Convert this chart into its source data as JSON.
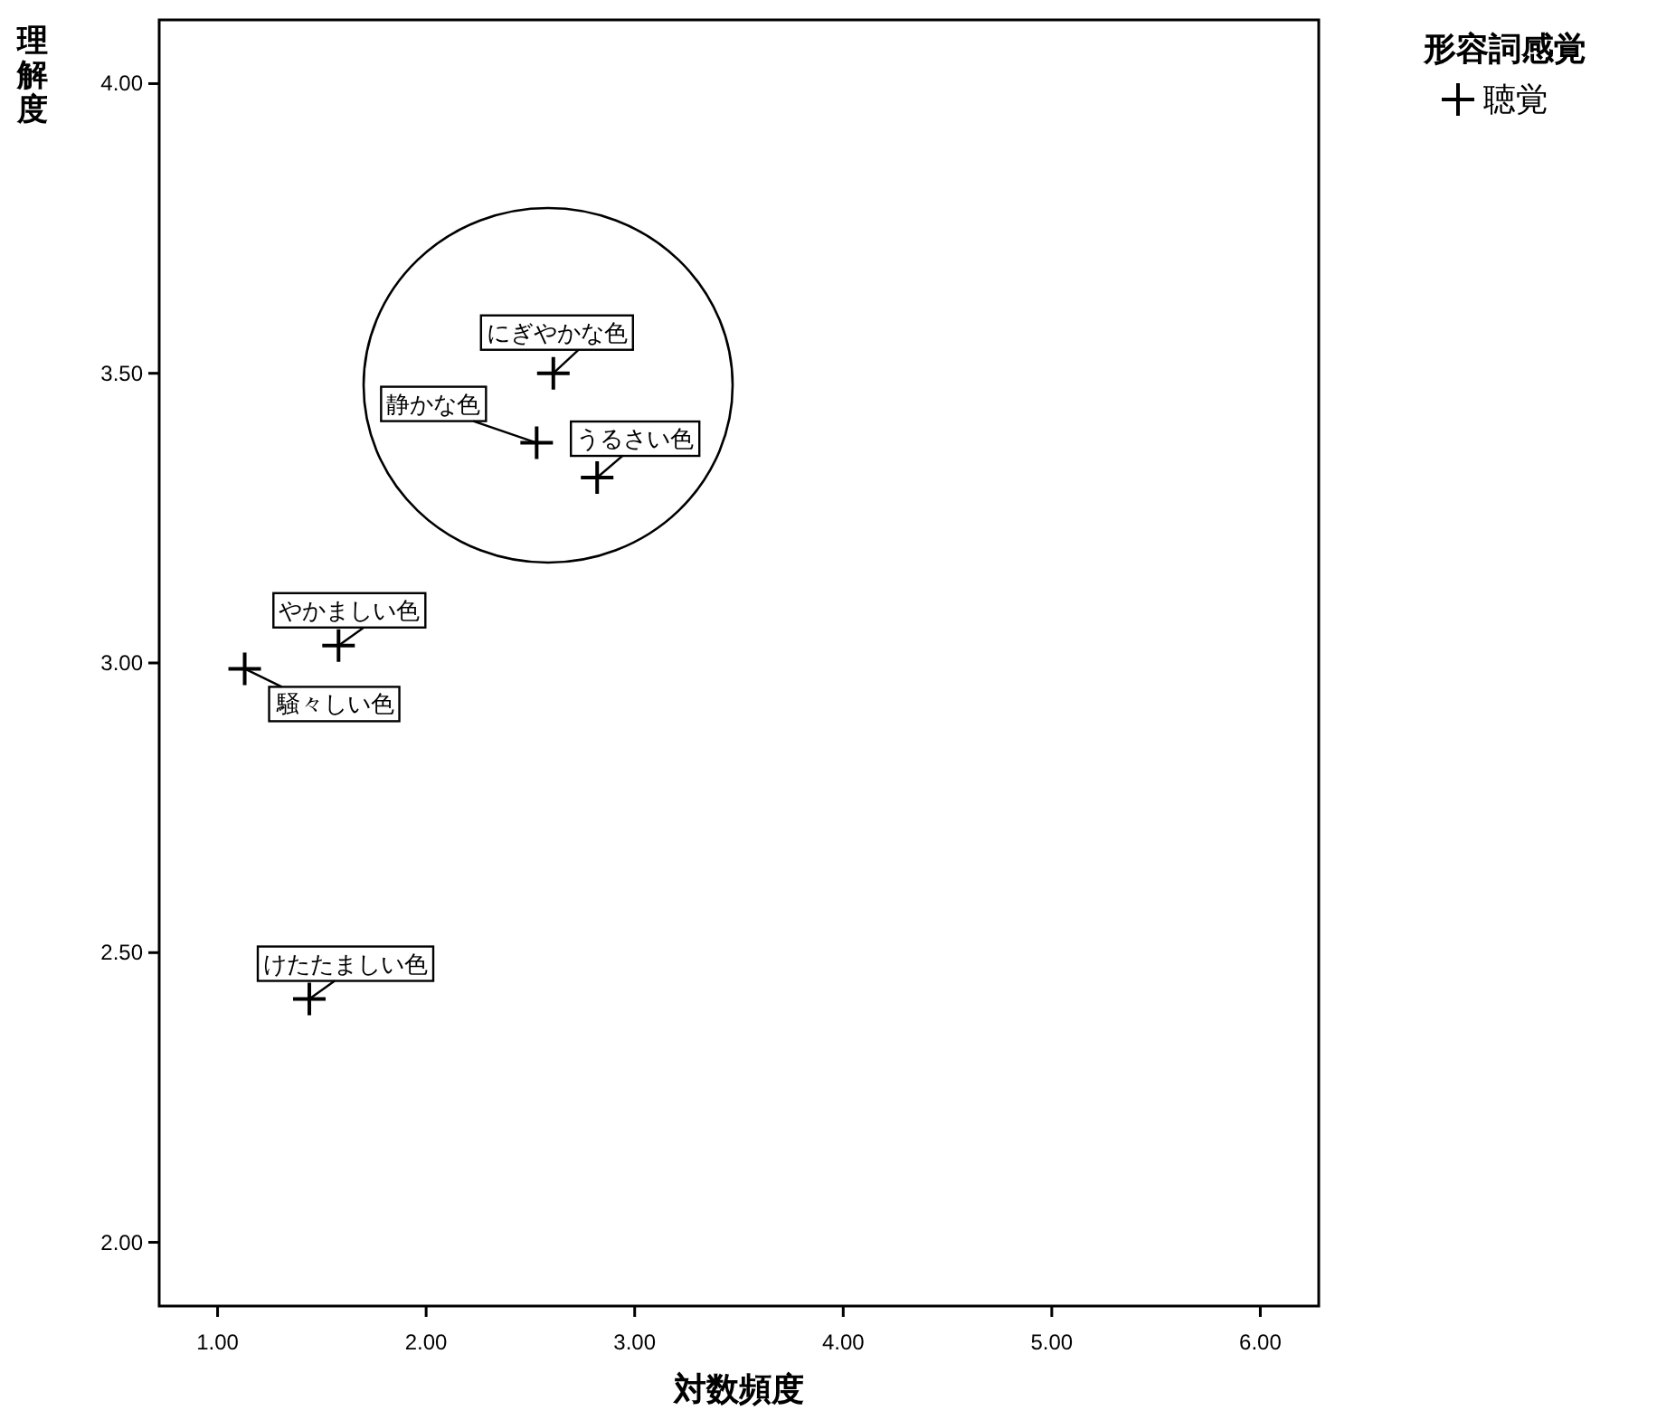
{
  "chart_data": {
    "type": "scatter",
    "xlabel": "対数頻度",
    "ylabel": "理解度",
    "legend_title": "形容詞感覚",
    "legend": "top right",
    "marker": "cross",
    "xlim": [
      0.72,
      6.28
    ],
    "xticks": [
      {
        "value": 1,
        "label": "1.00"
      },
      {
        "value": 2,
        "label": "2.00"
      },
      {
        "value": 3,
        "label": "3.00"
      },
      {
        "value": 4,
        "label": "4.00"
      },
      {
        "value": 5,
        "label": "5.00"
      },
      {
        "value": 6,
        "label": "6.00"
      }
    ],
    "ylim": [
      1.89,
      4.11
    ],
    "yticks": [
      {
        "value": 2,
        "label": "2.00"
      },
      {
        "value": 2.5,
        "label": "2.50"
      },
      {
        "value": 3,
        "label": "3.00"
      },
      {
        "value": 3.5,
        "label": "3.50"
      },
      {
        "value": 4,
        "label": "4.00"
      }
    ],
    "series": [
      {
        "name": "聴覚",
        "color": "#000000",
        "x": [
          2.61,
          2.53,
          2.82,
          1.58,
          1.13,
          1.44
        ],
        "values": [
          3.5,
          3.38,
          3.32,
          3.03,
          2.99,
          2.42
        ]
      }
    ],
    "annotations": [
      {
        "text": "にぎやかな色",
        "x": 2.61,
        "y": 3.5
      },
      {
        "text": "静かな色",
        "x": 2.53,
        "y": 3.38
      },
      {
        "text": "うるさい色",
        "x": 2.82,
        "y": 3.32
      },
      {
        "text": "やかましい色",
        "x": 1.58,
        "y": 3.03
      },
      {
        "text": "騒々しい色",
        "x": 1.13,
        "y": 2.99
      },
      {
        "text": "けたたましい色",
        "x": 1.44,
        "y": 2.42
      }
    ]
  }
}
